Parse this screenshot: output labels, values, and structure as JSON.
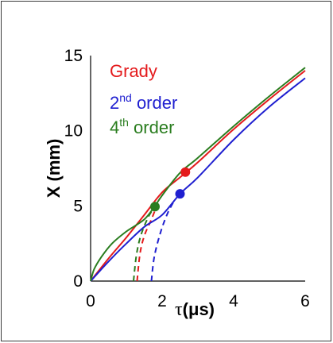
{
  "chart_data": {
    "type": "line",
    "xlabel": {
      "symbol": "τ",
      "unit": "(μs)"
    },
    "ylabel": "X (mm)",
    "xlim": [
      0,
      6
    ],
    "ylim": [
      0,
      15
    ],
    "xticks": [
      0,
      2,
      4,
      6
    ],
    "yticks": [
      0,
      5,
      10,
      15
    ],
    "grid": false,
    "legend_position": "top-left",
    "legend": [
      {
        "prefix": "Grady",
        "sup": "",
        "suffix": "",
        "color": "#e41a1c"
      },
      {
        "prefix": "2",
        "sup": "nd",
        "suffix": " order",
        "color": "#1f1fd0"
      },
      {
        "prefix": "4",
        "sup": "th",
        "suffix": " order",
        "color": "#2a7d1f"
      }
    ],
    "series": [
      {
        "name": "Grady",
        "color": "#e41a1c",
        "solid": [
          [
            0,
            0
          ],
          [
            0.5,
            1.5
          ],
          [
            1.0,
            2.9
          ],
          [
            1.5,
            4.4
          ],
          [
            2.0,
            5.9
          ],
          [
            2.5,
            6.9
          ],
          [
            3.0,
            7.9
          ],
          [
            4.0,
            10.1
          ],
          [
            5.0,
            12.1
          ],
          [
            6.0,
            14.0
          ]
        ],
        "dashed": [
          [
            1.3,
            0
          ],
          [
            1.38,
            1.8
          ],
          [
            1.5,
            3.0
          ],
          [
            1.7,
            4.1
          ],
          [
            1.85,
            5.0
          ]
        ],
        "marker": [
          2.65,
          7.25
        ]
      },
      {
        "name": "2nd order",
        "color": "#1f1fd0",
        "solid": [
          [
            0,
            0
          ],
          [
            0.5,
            1.3
          ],
          [
            1.0,
            2.5
          ],
          [
            1.5,
            3.6
          ],
          [
            2.0,
            4.4
          ],
          [
            2.5,
            5.8
          ],
          [
            3.0,
            6.9
          ],
          [
            4.0,
            9.4
          ],
          [
            5.0,
            11.6
          ],
          [
            6.0,
            13.5
          ]
        ],
        "dashed": [
          [
            1.7,
            0
          ],
          [
            1.78,
            1.6
          ],
          [
            1.95,
            3.2
          ],
          [
            2.15,
            4.5
          ],
          [
            2.35,
            5.4
          ]
        ],
        "marker": [
          2.5,
          5.8
        ]
      },
      {
        "name": "4th order",
        "color": "#2a7d1f",
        "solid": [
          [
            0,
            0
          ],
          [
            0.1,
            0.8
          ],
          [
            0.3,
            1.6
          ],
          [
            0.6,
            2.5
          ],
          [
            1.0,
            3.3
          ],
          [
            1.5,
            4.1
          ],
          [
            1.8,
            5.0
          ],
          [
            2.0,
            5.7
          ],
          [
            2.5,
            7.2
          ],
          [
            3.0,
            8.2
          ],
          [
            4.0,
            10.3
          ],
          [
            5.0,
            12.3
          ],
          [
            6.0,
            14.2
          ]
        ],
        "dashed": [
          [
            1.2,
            0
          ],
          [
            1.28,
            1.7
          ],
          [
            1.4,
            3.0
          ],
          [
            1.6,
            4.2
          ],
          [
            1.78,
            4.9
          ]
        ],
        "marker": [
          1.8,
          4.95
        ]
      }
    ]
  }
}
